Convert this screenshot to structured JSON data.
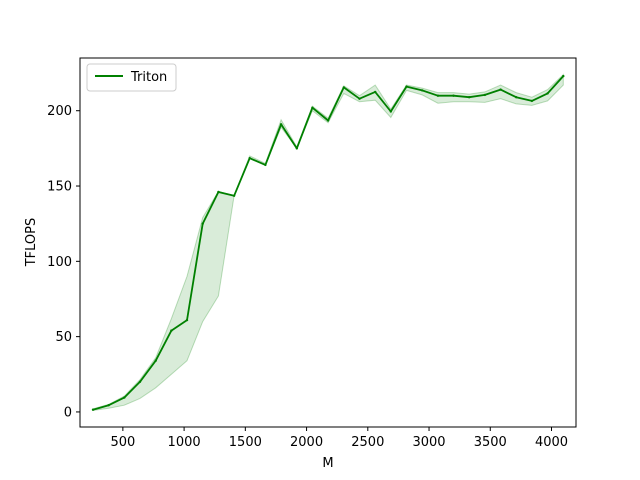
{
  "chart_data": {
    "type": "line",
    "xlabel": "M",
    "ylabel": "TFLOPS",
    "xlim": [
      150,
      4200
    ],
    "ylim": [
      -10,
      235
    ],
    "xticks": [
      500,
      1000,
      1500,
      2000,
      2500,
      3000,
      3500,
      4000
    ],
    "yticks": [
      0,
      50,
      100,
      150,
      200
    ],
    "grid": false,
    "legend": {
      "placement": "upper-left"
    },
    "series": [
      {
        "name": "Triton",
        "color": "#008000",
        "band_color": "#008000",
        "x": [
          256,
          384,
          512,
          640,
          768,
          896,
          1024,
          1152,
          1280,
          1408,
          1536,
          1664,
          1792,
          1920,
          2048,
          2176,
          2304,
          2432,
          2560,
          2688,
          2816,
          2944,
          3072,
          3200,
          3328,
          3456,
          3584,
          3712,
          3840,
          3968,
          4096
        ],
        "y": [
          1.5,
          4.5,
          9.5,
          20,
          34,
          54,
          61,
          125,
          146,
          143.5,
          168.5,
          164,
          191,
          175,
          202,
          193.5,
          215.5,
          208,
          212.5,
          199.5,
          216,
          213.5,
          210,
          210,
          209,
          210.5,
          214,
          209,
          206.5,
          211.5,
          223
        ],
        "y_lower": [
          1,
          2.5,
          4.5,
          9,
          16,
          25,
          34,
          60,
          77,
          143.5,
          168.5,
          164,
          189,
          175,
          200,
          192,
          211.5,
          206,
          207,
          195.5,
          213.5,
          210.5,
          205,
          206,
          206,
          205.5,
          208,
          204.5,
          203.5,
          206.5,
          217
        ],
        "y_upper": [
          2,
          5,
          10.5,
          21.5,
          36,
          62,
          90,
          129,
          146.5,
          143.5,
          170,
          165,
          194,
          176,
          203,
          195,
          216.5,
          210,
          217,
          201,
          217,
          215,
          212,
          212,
          211,
          212.5,
          217,
          212,
          209,
          214,
          224
        ]
      }
    ]
  }
}
